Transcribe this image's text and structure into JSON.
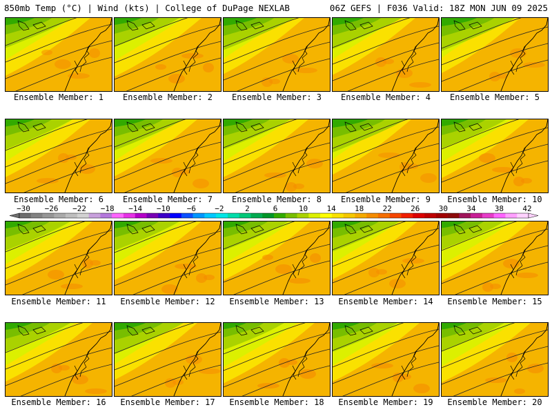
{
  "header": {
    "left": "850mb Temp (°C) | Wind (kts) | College of DuPage NEXLAB",
    "right": "06Z GEFS | F036 Valid: 18Z MON JUN 09 2025"
  },
  "panels": [
    {
      "caption": "Ensemble Member: 1",
      "warmth": 0.55
    },
    {
      "caption": "Ensemble Member: 2",
      "warmth": 0.6
    },
    {
      "caption": "Ensemble Member: 3",
      "warmth": 0.45
    },
    {
      "caption": "Ensemble Member: 4",
      "warmth": 0.5
    },
    {
      "caption": "Ensemble Member: 5",
      "warmth": 0.4
    },
    {
      "caption": "Ensemble Member: 6",
      "warmth": 0.55
    },
    {
      "caption": "Ensemble Member: 7",
      "warmth": 0.5
    },
    {
      "caption": "Ensemble Member: 8",
      "warmth": 0.55
    },
    {
      "caption": "Ensemble Member: 9",
      "warmth": 0.4
    },
    {
      "caption": "Ensemble Member: 10",
      "warmth": 0.6
    },
    {
      "caption": "Ensemble Member: 11",
      "warmth": 0.6
    },
    {
      "caption": "Ensemble Member: 12",
      "warmth": 0.6
    },
    {
      "caption": "Ensemble Member: 13",
      "warmth": 0.6
    },
    {
      "caption": "Ensemble Member: 14",
      "warmth": 0.55
    },
    {
      "caption": "Ensemble Member: 15",
      "warmth": 0.65
    },
    {
      "caption": "Ensemble Member: 16",
      "warmth": 0.6
    },
    {
      "caption": "Ensemble Member: 17",
      "warmth": 0.5
    },
    {
      "caption": "Ensemble Member: 18",
      "warmth": 0.7
    },
    {
      "caption": "Ensemble Member: 19",
      "warmth": 0.6
    },
    {
      "caption": "Ensemble Member: 20",
      "warmth": 0.65
    }
  ],
  "colorbar": {
    "labels": [
      "−30",
      "−26",
      "−22",
      "−18",
      "−14",
      "−10",
      "−6",
      "−2",
      "2",
      "6",
      "10",
      "14",
      "18",
      "22",
      "26",
      "30",
      "34",
      "38",
      "42"
    ],
    "colors": [
      "#6e6e6e",
      "#828282",
      "#969696",
      "#aaaaaa",
      "#bebebe",
      "#d2d2d2",
      "#c8a0dc",
      "#b478dc",
      "#ff64ff",
      "#e632e6",
      "#b400c8",
      "#7800b4",
      "#3c00c8",
      "#0000ff",
      "#0a50ff",
      "#0096ff",
      "#00c8ff",
      "#00e6e6",
      "#00dcaa",
      "#00c878",
      "#00aa50",
      "#009628",
      "#32aa00",
      "#78be00",
      "#aad200",
      "#dcf000",
      "#ffff00",
      "#fae100",
      "#f5c800",
      "#f5aa00",
      "#f58c00",
      "#f56e00",
      "#f54600",
      "#f01e00",
      "#dc0000",
      "#be0000",
      "#a00000",
      "#8c0a0a",
      "#a0145a",
      "#c81e96",
      "#e63cc8",
      "#ff64ff",
      "#ffa0ff",
      "#ffd2ff"
    ]
  }
}
